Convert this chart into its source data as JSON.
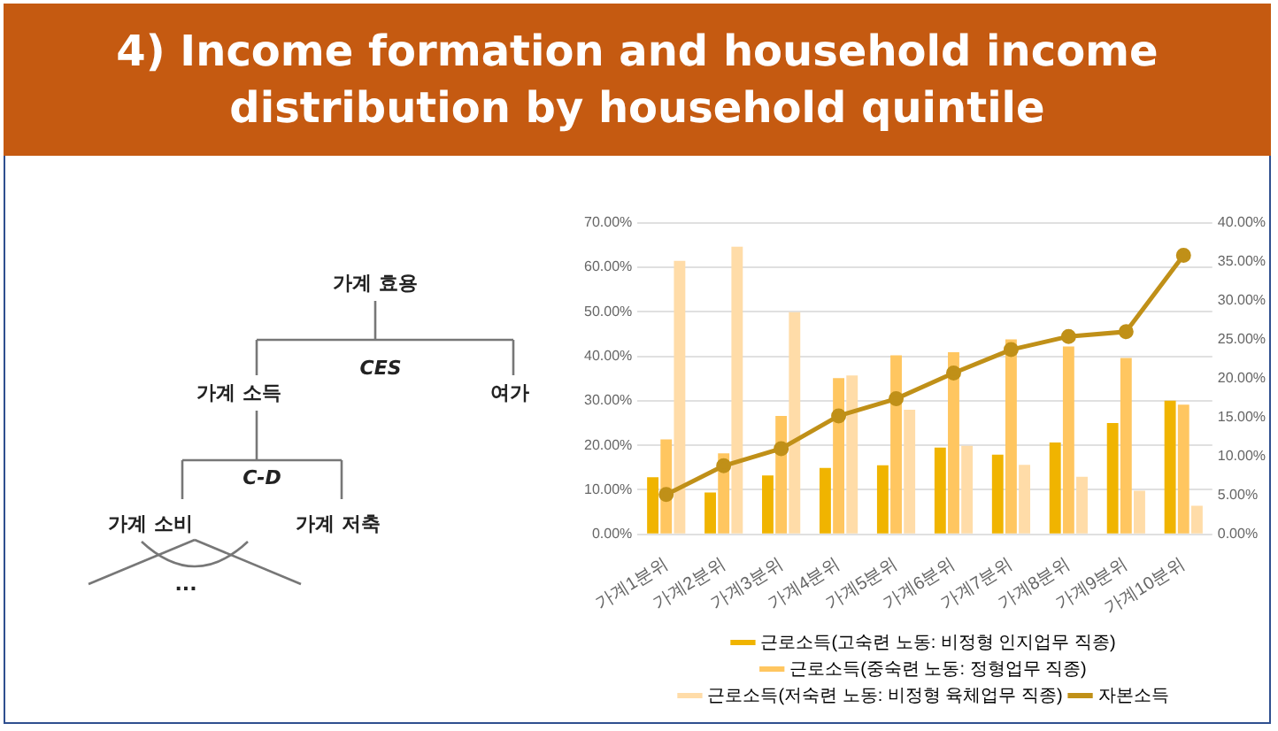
{
  "chart_data": [
    {
      "type": "other",
      "title": "4) Income formation and household income distribution by household quintile",
      "annotations": [
        "가계 효용",
        "CES",
        "가계 소득",
        "여가",
        "C-D",
        "가계 소비",
        "가계 저축",
        "..."
      ]
    },
    {
      "type": "bar",
      "categories": [
        "가계1분위",
        "가계2분위",
        "가계3분위",
        "가계4분위",
        "가계5분위",
        "가계6분위",
        "가계7분위",
        "가계8분위",
        "가계9분위",
        "가계10분위"
      ],
      "series": [
        {
          "name": "근로소득(고숙련 노동: 비정형 인지업무 직종)",
          "color": "#f0b400",
          "values": [
            12.8,
            9.4,
            13.2,
            14.9,
            15.5,
            19.5,
            17.9,
            20.6,
            25.0,
            30.0
          ]
        },
        {
          "name": "근로소득(중숙련 노동: 정형업무 직종)",
          "color": "#ffc660",
          "values": [
            21.3,
            18.2,
            26.6,
            35.1,
            40.2,
            40.9,
            43.8,
            42.2,
            39.6,
            29.1
          ]
        },
        {
          "name": "근로소득(저숙련 노동: 비정형 육체업무 직종)",
          "color": "#ffdca8",
          "values": [
            61.4,
            64.6,
            49.9,
            35.7,
            28.0,
            19.9,
            15.6,
            12.9,
            9.8,
            6.4
          ]
        },
        {
          "name": "자본소득",
          "type": "line",
          "axis": "y2",
          "color": "#c09018",
          "values": [
            5.1,
            8.8,
            11.0,
            15.2,
            17.4,
            20.7,
            23.7,
            25.4,
            26.0,
            35.8
          ]
        }
      ],
      "ylim": [
        0,
        70
      ],
      "yticks": [
        {
          "value": 0,
          "label": "0.00%"
        },
        {
          "value": 10,
          "label": "10.00%"
        },
        {
          "value": 20,
          "label": "20.00%"
        },
        {
          "value": 30,
          "label": "30.00%"
        },
        {
          "value": 40,
          "label": "40.00%"
        },
        {
          "value": 50,
          "label": "50.00%"
        },
        {
          "value": 60,
          "label": "60.00%"
        },
        {
          "value": 70,
          "label": "70.00%"
        }
      ],
      "y2lim": [
        0,
        40
      ],
      "y2ticks": [
        {
          "value": 0,
          "label": "0.00%"
        },
        {
          "value": 5,
          "label": "5.00%"
        },
        {
          "value": 10,
          "label": "10.00%"
        },
        {
          "value": 15,
          "label": "15.00%"
        },
        {
          "value": 20,
          "label": "20.00%"
        },
        {
          "value": 25,
          "label": "25.00%"
        },
        {
          "value": 30,
          "label": "30.00%"
        },
        {
          "value": 35,
          "label": "35.00%"
        },
        {
          "value": 40,
          "label": "40.00%"
        }
      ],
      "grid": "y",
      "legend": "bottom",
      "marker": "circle"
    }
  ]
}
